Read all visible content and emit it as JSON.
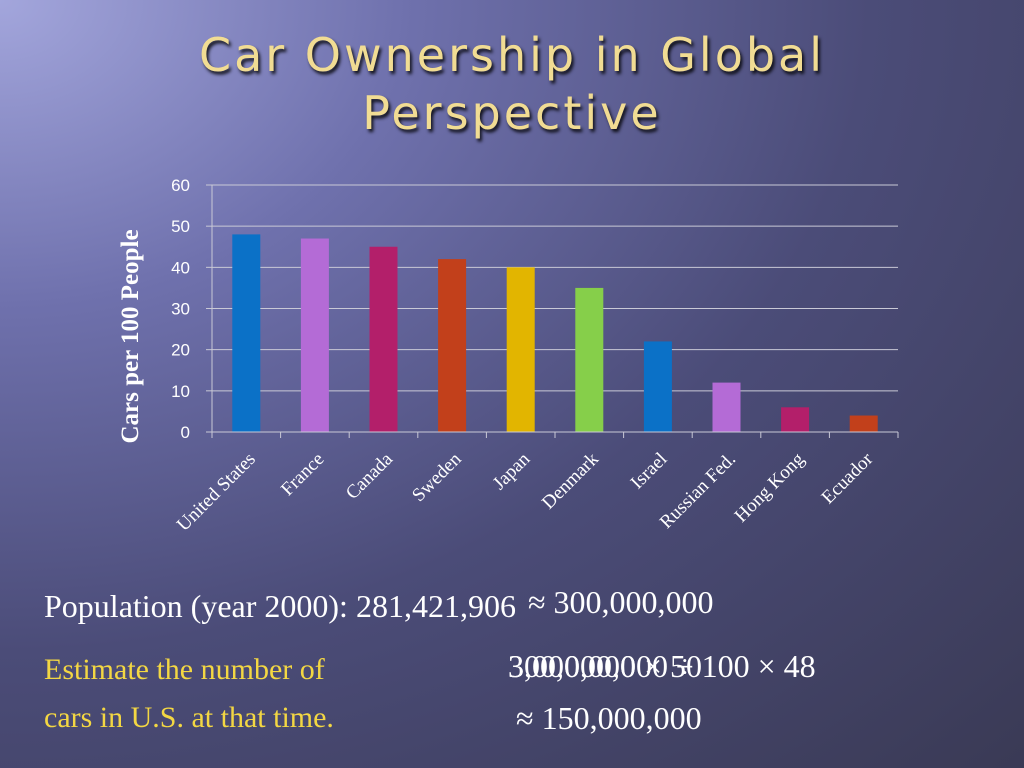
{
  "slide": {
    "title_line1": "Car Ownership in Global",
    "title_line2": "Perspective"
  },
  "chart_data": {
    "type": "bar",
    "title": "",
    "ylabel": "Cars per 100 People",
    "xlabel": "",
    "ylim": [
      0,
      60
    ],
    "yticks": [
      "0",
      "10",
      "20",
      "30",
      "40",
      "50",
      "60"
    ],
    "grid": true,
    "categories": [
      "United States",
      "France",
      "Canada",
      "Sweden",
      "Japan",
      "Denmark",
      "Israel",
      "Russian Fed.",
      "Hong Kong",
      "Ecuador"
    ],
    "values": [
      48,
      47,
      45,
      42,
      40,
      35,
      22,
      12,
      6,
      4
    ],
    "colors": [
      "#0b71c7",
      "#b46bd6",
      "#b31f6a",
      "#c2401b",
      "#e2b500",
      "#86cf4a",
      "#0b71c7",
      "#b46bd6",
      "#b31f6a",
      "#c2401b"
    ]
  },
  "text": {
    "population_label": "Population (year 2000):",
    "population_value": "281,421,906",
    "approx_population": "≈ 300,000,000",
    "estimate_line1": "Estimate the number of",
    "estimate_line2": "cars in U.S. at that time.",
    "calc_step1": "300,000,000 ÷ 100 × 48",
    "calc_step2": "3,000,000 × 50",
    "calc_result": "≈ 150,000,000"
  }
}
